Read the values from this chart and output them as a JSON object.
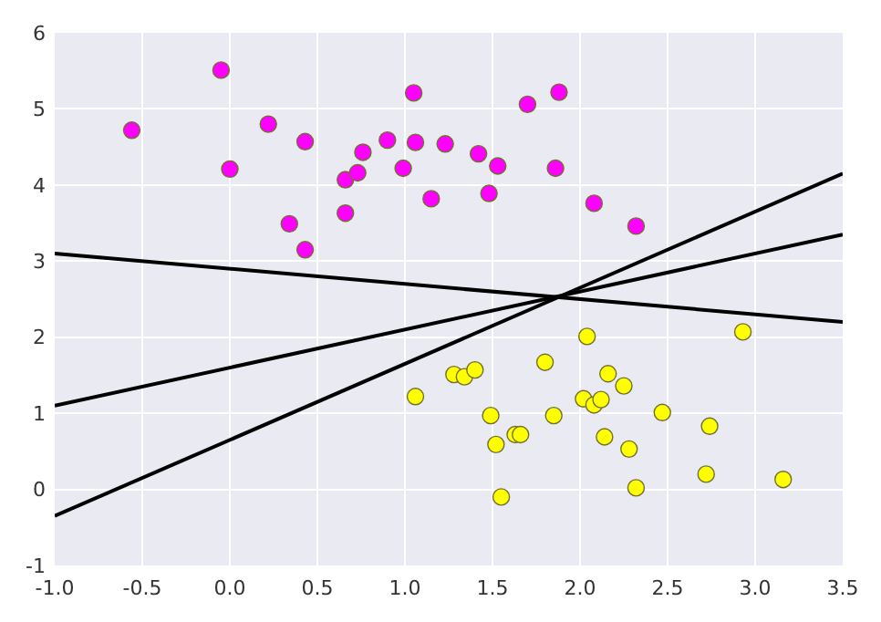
{
  "chart_data": {
    "type": "scatter",
    "xlim": [
      -1,
      3.5
    ],
    "ylim": [
      -1,
      6
    ],
    "xticks": [
      {
        "value": -1,
        "label": "-1.0"
      },
      {
        "value": -0.5,
        "label": "-0.5"
      },
      {
        "value": 0,
        "label": "0.0"
      },
      {
        "value": 0.5,
        "label": "0.5"
      },
      {
        "value": 1,
        "label": "1.0"
      },
      {
        "value": 1.5,
        "label": "1.5"
      },
      {
        "value": 2,
        "label": "2.0"
      },
      {
        "value": 2.5,
        "label": "2.5"
      },
      {
        "value": 3,
        "label": "3.0"
      },
      {
        "value": 3.5,
        "label": "3.5"
      }
    ],
    "yticks": [
      -1,
      0,
      1,
      2,
      3,
      4,
      5,
      6
    ],
    "grid": true,
    "marker": "circle",
    "series": [
      {
        "color": "#ff00ff",
        "x": [
          -0.56,
          -0.05,
          0.0,
          0.22,
          0.43,
          0.34,
          0.43,
          0.66,
          0.66,
          0.73,
          0.76,
          0.9,
          1.05,
          1.06,
          0.99,
          1.15,
          1.23,
          1.42,
          1.53,
          1.48,
          1.7,
          1.88,
          1.86,
          2.08,
          2.32
        ],
        "values": [
          4.72,
          5.51,
          4.21,
          4.8,
          4.57,
          3.49,
          3.15,
          3.63,
          4.07,
          4.16,
          4.43,
          4.59,
          5.21,
          4.56,
          4.22,
          3.82,
          4.54,
          4.41,
          4.25,
          3.89,
          5.06,
          5.22,
          4.22,
          3.76,
          3.46
        ]
      },
      {
        "color": "#ffff00",
        "x": [
          1.06,
          1.28,
          1.34,
          1.4,
          1.49,
          1.52,
          1.55,
          1.63,
          1.66,
          1.8,
          1.85,
          2.04,
          2.02,
          2.08,
          2.12,
          2.16,
          2.14,
          2.25,
          2.28,
          2.32,
          2.47,
          2.74,
          2.72,
          2.93,
          3.16
        ],
        "values": [
          1.22,
          1.51,
          1.48,
          1.57,
          0.97,
          0.59,
          -0.1,
          0.72,
          0.72,
          1.67,
          0.97,
          2.01,
          1.19,
          1.11,
          1.18,
          1.52,
          0.69,
          1.36,
          0.53,
          0.02,
          1.01,
          0.83,
          0.2,
          2.07,
          0.13
        ]
      },
      {
        "type": "line",
        "color": "#000000",
        "marker": "none",
        "x": [
          -1,
          3.5
        ],
        "values": [
          -0.35,
          4.15
        ]
      },
      {
        "type": "line",
        "color": "#000000",
        "marker": "none",
        "x": [
          -1,
          3.5
        ],
        "values": [
          1.1,
          3.35
        ]
      },
      {
        "type": "line",
        "color": "#000000",
        "marker": "none",
        "x": [
          -1,
          3.5
        ],
        "values": [
          3.1,
          2.2
        ]
      }
    ]
  }
}
